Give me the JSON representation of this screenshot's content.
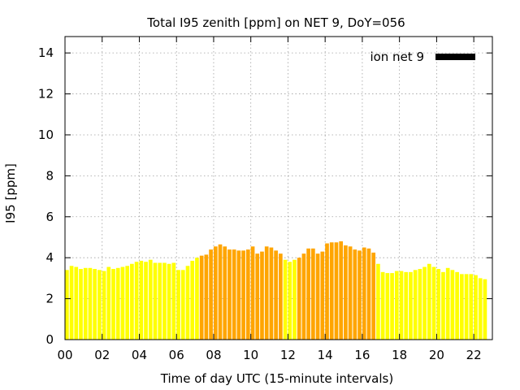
{
  "chart_data": {
    "type": "bar",
    "title": "Total I95 zenith [ppm] on NET 9, DoY=056",
    "xlabel": "Time of day UTC (15-minute intervals)",
    "ylabel": "I95 [ppm]",
    "xlim": [
      0,
      23
    ],
    "ylim": [
      0,
      14.8
    ],
    "xticks": [
      0,
      2,
      4,
      6,
      8,
      10,
      12,
      14,
      16,
      18,
      20,
      22
    ],
    "xtick_labels": [
      "00",
      "02",
      "04",
      "06",
      "08",
      "10",
      "12",
      "14",
      "16",
      "18",
      "20",
      "22"
    ],
    "yticks": [
      0,
      2,
      4,
      6,
      8,
      10,
      12,
      14
    ],
    "ytick_labels": [
      "0",
      "2",
      "4",
      "6",
      "8",
      "10",
      "12",
      "14"
    ],
    "grid": true,
    "legend": {
      "label": "ion net 9",
      "color": "#000000",
      "position": "top-right"
    },
    "interval_hours": 0.25,
    "colors": {
      "low": "#ffff00",
      "high": "#ffa500"
    },
    "series": [
      {
        "x": [
          0.0,
          0.25,
          0.5,
          0.75,
          1.0,
          1.25,
          1.5,
          1.75,
          2.0,
          2.25,
          2.5,
          2.75,
          3.0,
          3.25,
          3.5,
          3.75,
          4.0,
          4.25,
          4.5,
          4.75,
          5.0,
          5.25,
          5.5,
          5.75,
          6.0,
          6.25,
          6.5,
          6.75,
          7.0,
          7.25,
          7.5,
          7.75,
          8.0,
          8.25,
          8.5,
          8.75,
          9.0,
          9.25,
          9.5,
          9.75,
          10.0,
          10.25,
          10.5,
          10.75,
          11.0,
          11.25,
          11.5,
          11.75,
          12.0,
          12.25,
          12.5,
          12.75,
          13.0,
          13.25,
          13.5,
          13.75,
          14.0,
          14.25,
          14.5,
          14.75,
          15.0,
          15.25,
          15.5,
          15.75,
          16.0,
          16.25,
          16.5,
          16.75,
          17.0,
          17.25,
          17.5,
          17.75,
          18.0,
          18.25,
          18.5,
          18.75,
          19.0,
          19.25,
          19.5,
          19.75,
          20.0,
          20.25,
          20.5,
          20.75,
          21.0,
          21.25,
          21.5,
          21.75,
          22.0,
          22.25,
          22.5,
          22.75
        ],
        "values": [
          3.4,
          3.6,
          3.55,
          3.45,
          3.5,
          3.5,
          3.45,
          3.4,
          3.35,
          3.55,
          3.45,
          3.5,
          3.55,
          3.6,
          3.7,
          3.8,
          3.85,
          3.8,
          3.9,
          3.75,
          3.75,
          3.75,
          3.7,
          3.75,
          3.4,
          3.4,
          3.6,
          3.85,
          4.0,
          4.1,
          4.15,
          4.4,
          4.55,
          4.65,
          4.55,
          4.4,
          4.4,
          4.35,
          4.35,
          4.4,
          4.55,
          4.2,
          4.3,
          4.55,
          4.5,
          4.35,
          4.2,
          3.9,
          3.8,
          3.9,
          4.0,
          4.2,
          4.45,
          4.45,
          4.2,
          4.3,
          4.7,
          4.75,
          4.75,
          4.8,
          4.6,
          4.55,
          4.4,
          4.35,
          4.5,
          4.45,
          4.25,
          3.7,
          3.3,
          3.25,
          3.25,
          3.35,
          3.35,
          3.3,
          3.3,
          3.4,
          3.45,
          3.55,
          3.7,
          3.55,
          3.45,
          3.3,
          3.5,
          3.4,
          3.3,
          3.2,
          3.2,
          3.2,
          3.15,
          3.0,
          2.95,
          0
        ],
        "levels": [
          "low",
          "low",
          "low",
          "low",
          "low",
          "low",
          "low",
          "low",
          "low",
          "low",
          "low",
          "low",
          "low",
          "low",
          "low",
          "low",
          "low",
          "low",
          "low",
          "low",
          "low",
          "low",
          "low",
          "low",
          "low",
          "low",
          "low",
          "low",
          "low",
          "high",
          "high",
          "high",
          "high",
          "high",
          "high",
          "high",
          "high",
          "high",
          "high",
          "high",
          "high",
          "high",
          "high",
          "high",
          "high",
          "high",
          "high",
          "low",
          "low",
          "low",
          "high",
          "high",
          "high",
          "high",
          "high",
          "high",
          "high",
          "high",
          "high",
          "high",
          "high",
          "high",
          "high",
          "high",
          "high",
          "high",
          "high",
          "low",
          "low",
          "low",
          "low",
          "low",
          "low",
          "low",
          "low",
          "low",
          "low",
          "low",
          "low",
          "low",
          "low",
          "low",
          "low",
          "low",
          "low",
          "low",
          "low",
          "low",
          "low",
          "low",
          "low",
          "low"
        ]
      }
    ]
  }
}
